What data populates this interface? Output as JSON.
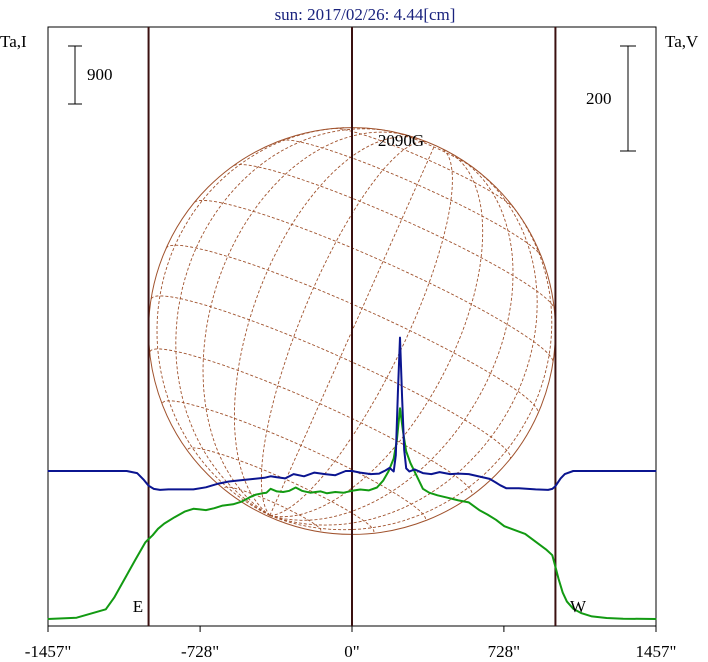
{
  "chart_data": {
    "type": "line",
    "title": "sun: 2017/02/26: 4.44[cm]",
    "left_axis_label": "Ta,I",
    "right_axis_label": "Ta,V",
    "left_scale_label": "900",
    "left_scale_value": 900,
    "right_scale_label": "200",
    "right_scale_value": 200,
    "xlim": [
      -1457,
      1457
    ],
    "x_ticks": [
      {
        "value": -1457,
        "label": "-1457\""
      },
      {
        "value": -728,
        "label": "-728\""
      },
      {
        "value": 0,
        "label": "0\""
      },
      {
        "value": 728,
        "label": "728\""
      },
      {
        "value": 1457,
        "label": "1457\""
      }
    ],
    "limb_lines": [
      -975,
      0,
      975
    ],
    "disk_radius": 975,
    "east_label": "E",
    "west_label": "W",
    "peak_annotation": "2090G",
    "peak_annotation_x": 230,
    "colors": {
      "stokes_i": "#129a12",
      "stokes_v": "#0b1590",
      "grid": "#a0522d",
      "limb_line": "#3a1010",
      "title": "#1a237e"
    },
    "series": [
      {
        "key": "stokes_i",
        "x": [
          -1457,
          -1320,
          -1180,
          -1140,
          -1090,
          -1040,
          -990,
          -975,
          -955,
          -930,
          -900,
          -850,
          -800,
          -760,
          -730,
          -700,
          -660,
          -620,
          -570,
          -530,
          -490,
          -460,
          -430,
          -410,
          -390,
          -360,
          -330,
          -300,
          -270,
          -240,
          -200,
          -175,
          -150,
          -120,
          -80,
          -40,
          0,
          40,
          80,
          120,
          150,
          175,
          200,
          215,
          230,
          245,
          260,
          280,
          310,
          340,
          370,
          410,
          460,
          510,
          560,
          610,
          650,
          690,
          730,
          780,
          830,
          880,
          930,
          960,
          975,
          990,
          1010,
          1030,
          1060,
          1100,
          1150,
          1220,
          1300,
          1457
        ],
        "y": [
          0,
          20,
          150,
          330,
          620,
          910,
          1190,
          1240,
          1300,
          1400,
          1480,
          1580,
          1670,
          1710,
          1700,
          1690,
          1720,
          1760,
          1780,
          1820,
          1890,
          1930,
          1950,
          1960,
          2020,
          1980,
          1970,
          1990,
          2040,
          1990,
          1960,
          1970,
          1980,
          1950,
          1970,
          1960,
          1990,
          2010,
          1995,
          2040,
          2150,
          2290,
          2490,
          2780,
          3270,
          2900,
          2600,
          2420,
          2220,
          2020,
          1960,
          1920,
          1880,
          1840,
          1810,
          1690,
          1620,
          1540,
          1440,
          1380,
          1320,
          1200,
          1080,
          990,
          810,
          620,
          410,
          270,
          160,
          90,
          40,
          15,
          5,
          0
        ]
      },
      {
        "key": "stokes_v",
        "x": [
          -1457,
          -1080,
          -1030,
          -1000,
          -975,
          -950,
          -920,
          -880,
          -760,
          -700,
          -640,
          -590,
          -540,
          -470,
          -420,
          -390,
          -360,
          -320,
          -280,
          -230,
          -180,
          -130,
          -80,
          -30,
          0,
          40,
          90,
          130,
          160,
          180,
          200,
          210,
          220,
          230,
          240,
          250,
          260,
          275,
          300,
          340,
          380,
          420,
          470,
          510,
          560,
          660,
          690,
          710,
          740,
          800,
          880,
          940,
          960,
          975,
          1000,
          1020,
          1060,
          1120,
          1200,
          1457
        ],
        "y": [
          0,
          0,
          -4,
          -16,
          -28,
          -34,
          -36,
          -35,
          -35,
          -31,
          -24,
          -20,
          -18,
          -15,
          -13,
          -10,
          -12,
          -14,
          -6,
          -10,
          -3,
          -6,
          -8,
          0,
          0,
          -3,
          -6,
          -5,
          1,
          6,
          -1,
          30,
          150,
          254,
          140,
          40,
          5,
          -1,
          3,
          -4,
          -6,
          -2,
          -6,
          -5,
          -6,
          -15,
          -22,
          -27,
          -33,
          -33,
          -35,
          -36,
          -34,
          -29,
          -14,
          -6,
          0,
          0,
          0,
          0
        ]
      }
    ]
  }
}
